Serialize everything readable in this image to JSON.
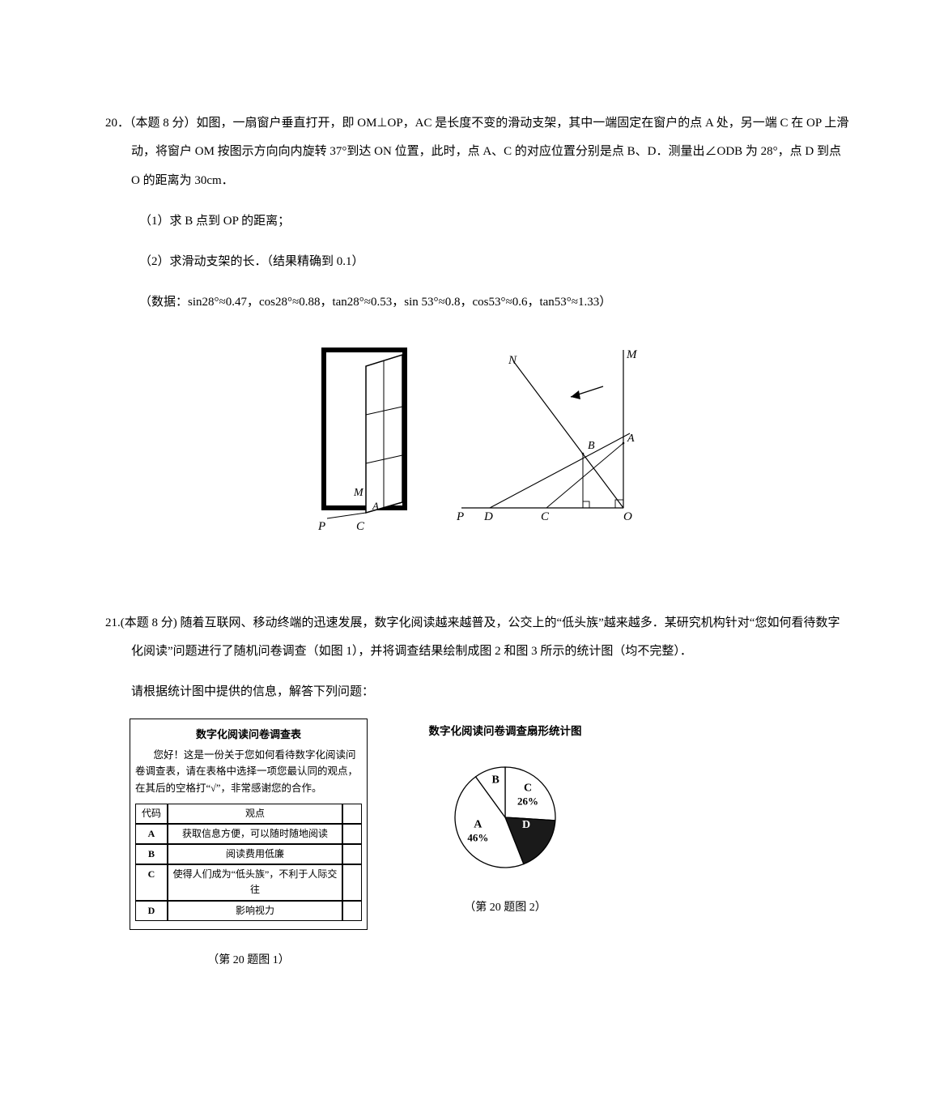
{
  "q20": {
    "number": "20．",
    "stem1": "（本题 8 分）如图，一扇窗户垂直打开，即 OM⊥OP，AC 是长度不变的滑动支架，其中一端固定在窗户的点 A 处，另一端 C 在 OP 上滑动，将窗户 OM 按图示方向向内旋转 37°到达 ON 位置，此时，点 A、C 的对应位置分别是点 B、D．测量出∠ODB 为 28°，点 D 到点 O 的距离为 30cm．",
    "part1": "（1）求 B 点到 OP 的距离；",
    "part2": "（2）求滑动支架的长．（结果精确到 0.1）",
    "data_line": "（数据：sin28°≈0.47，cos28°≈0.88，tan28°≈0.53，sin 53°≈0.8，cos53°≈0.6，tan53°≈1.33）",
    "fig_labels": {
      "P": "P",
      "C": "C",
      "M": "M",
      "A": "A",
      "N": "N",
      "B": "B",
      "D": "D",
      "O": "O"
    }
  },
  "q21": {
    "number": "21.",
    "stem1": "(本题 8 分) 随着互联网、移动终端的迅速发展，数字化阅读越来越普及，公交上的“低头族”越来越多．某研究机构针对“您如何看待数字化阅读”问题进行了随机问卷调查（如图 1），并将调查结果绘制成图 2 和图 3 所示的统计图（均不完整）．",
    "stem2": "请根据统计图中提供的信息，解答下列问题：",
    "survey": {
      "title": "数字化阅读问卷调查表",
      "intro": "您好！这是一份关于您如何看待数字化阅读问卷调查表，请在表格中选择一项您最认同的观点，在其后的空格打“√”，非常感谢您的合作。",
      "col1": "代码",
      "col2": "观点",
      "rows": [
        {
          "code": "A",
          "text": "获取信息方便，可以随时随地阅读"
        },
        {
          "code": "B",
          "text": "阅读费用低廉"
        },
        {
          "code": "C",
          "text": "使得人们成为“低头族”，不利于人际交往"
        },
        {
          "code": "D",
          "text": "影响视力"
        }
      ],
      "caption": "（第 20 题图 1）"
    },
    "pie": {
      "title": "数字化阅读问卷调查扇形统计图",
      "caption": "（第 20 题图 2）",
      "slices": {
        "A": {
          "label": "A",
          "pct": "46%",
          "angle": 165.6,
          "color": "#ffffff"
        },
        "B": {
          "label": "B",
          "pct": "",
          "angle": 36.0,
          "color": "#ffffff"
        },
        "C": {
          "label": "C",
          "pct": "26%",
          "angle": 93.6,
          "color": "#ffffff"
        },
        "D": {
          "label": "D",
          "pct": "",
          "angle": 64.8,
          "color": "#1a1a1a"
        }
      },
      "stroke": "#000000",
      "radius": 62
    }
  }
}
